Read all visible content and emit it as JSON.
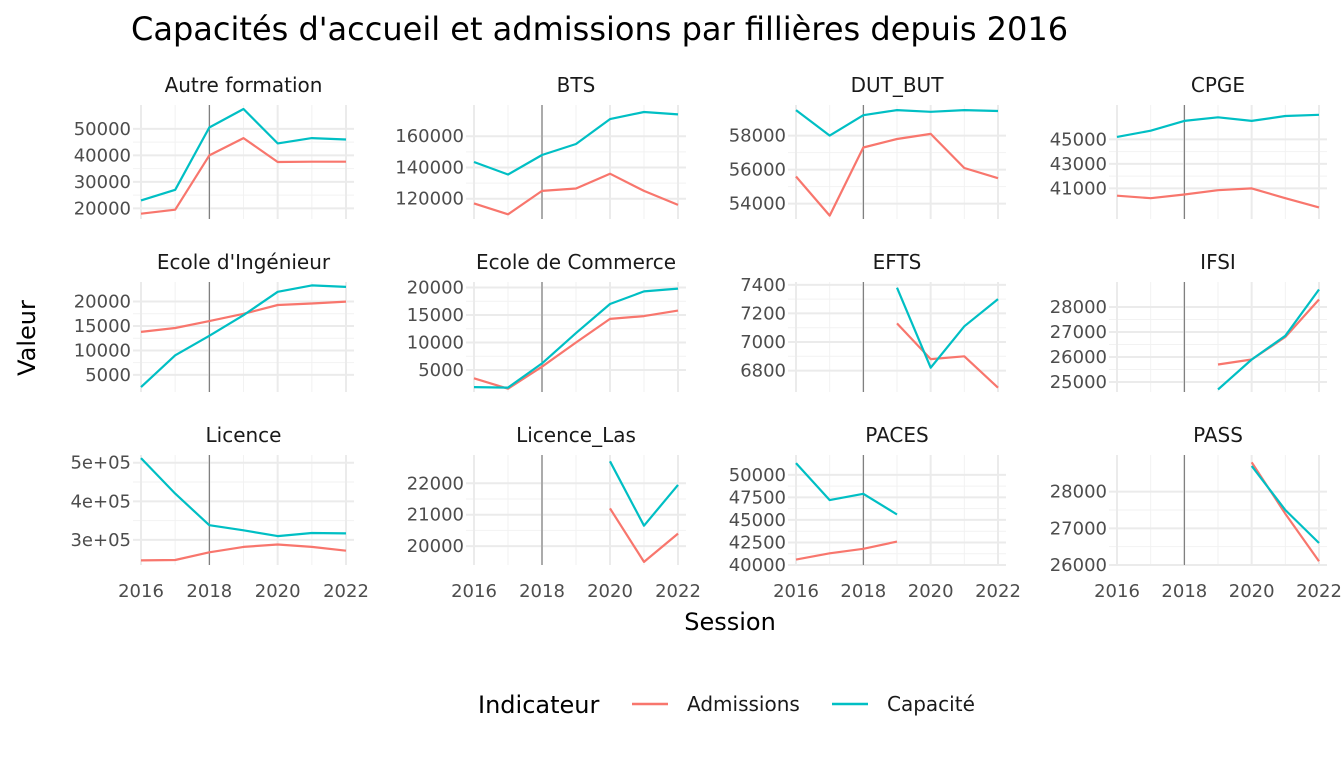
{
  "title": "Capacités d'accueil et admissions par fillières depuis 2016",
  "xlabel": "Session",
  "ylabel": "Valeur",
  "legend": {
    "title": "Indicateur",
    "items": [
      {
        "label": "Admissions",
        "color": "#F8766D"
      },
      {
        "label": "Capacité",
        "color": "#00BFC4"
      }
    ]
  },
  "chart_data": {
    "type": "line",
    "facet": "small-multiples",
    "x_ticks": [
      "2016",
      "2018",
      "2020",
      "2022"
    ],
    "x_range": [
      2016,
      2022
    ],
    "reference_line_x": 2018,
    "grid": true,
    "legend_position": "bottom",
    "x": [
      2016,
      2017,
      2018,
      2019,
      2020,
      2021,
      2022
    ],
    "panels": [
      {
        "title": "Autre formation",
        "ylim": [
          16000,
          59000
        ],
        "yticks": [
          20000,
          30000,
          40000,
          50000
        ],
        "ytick_labels": [
          "20000",
          "30000",
          "40000",
          "50000"
        ],
        "series": [
          {
            "name": "Admissions",
            "values": [
              18000,
              19500,
              40000,
              46500,
              37500,
              37600,
              37600
            ]
          },
          {
            "name": "Capacité",
            "values": [
              23000,
              27000,
              50500,
              57500,
              44500,
              46500,
              46000
            ]
          }
        ]
      },
      {
        "title": "BTS",
        "ylim": [
          107000,
          180000
        ],
        "yticks": [
          120000,
          140000,
          160000
        ],
        "ytick_labels": [
          "120000",
          "140000",
          "160000"
        ],
        "series": [
          {
            "name": "Admissions",
            "values": [
              117000,
              110000,
              125000,
              126500,
              136000,
              125000,
              116000
            ]
          },
          {
            "name": "Capacité",
            "values": [
              143500,
              135500,
              148000,
              155000,
              171000,
              175500,
              174000
            ]
          }
        ]
      },
      {
        "title": "DUT_BUT",
        "ylim": [
          53100,
          59800
        ],
        "yticks": [
          54000,
          56000,
          58000
        ],
        "ytick_labels": [
          "54000",
          "56000",
          "58000"
        ],
        "series": [
          {
            "name": "Admissions",
            "values": [
              55600,
              53300,
              57300,
              57800,
              58100,
              56100,
              55500
            ]
          },
          {
            "name": "Capacité",
            "values": [
              59500,
              58000,
              59200,
              59500,
              59400,
              59500,
              59450
            ]
          }
        ]
      },
      {
        "title": "CPGE",
        "ylim": [
          38500,
          47800
        ],
        "yticks": [
          41000,
          43000,
          45000
        ],
        "ytick_labels": [
          "41000",
          "43000",
          "45000"
        ],
        "series": [
          {
            "name": "Admissions",
            "values": [
              40400,
              40200,
              40500,
              40850,
              41000,
              40200,
              39450
            ]
          },
          {
            "name": "Capacité",
            "values": [
              45200,
              45700,
              46500,
              46800,
              46500,
              46900,
              47000
            ]
          }
        ]
      },
      {
        "title": "Ecole d'Ingénieur",
        "ylim": [
          1500,
          24000
        ],
        "yticks": [
          5000,
          10000,
          15000,
          20000
        ],
        "ytick_labels": [
          "5000",
          "10000",
          "15000",
          "20000"
        ],
        "series": [
          {
            "name": "Admissions",
            "values": [
              13800,
              14600,
              16000,
              17500,
              19300,
              19600,
              20000
            ]
          },
          {
            "name": "Capacité",
            "values": [
              2500,
              9000,
              13000,
              17200,
              22000,
              23300,
              23000
            ]
          }
        ]
      },
      {
        "title": "Ecole de Commerce",
        "ylim": [
          1000,
          21000
        ],
        "yticks": [
          5000,
          10000,
          15000,
          20000
        ],
        "ytick_labels": [
          "5000",
          "10000",
          "15000",
          "20000"
        ],
        "series": [
          {
            "name": "Admissions",
            "values": [
              3500,
              1600,
              5600,
              10000,
              14300,
              14800,
              15800
            ]
          },
          {
            "name": "Capacité",
            "values": [
              1900,
              1800,
              6200,
              11700,
              17000,
              19300,
              19800
            ]
          }
        ]
      },
      {
        "title": "EFTS",
        "ylim": [
          6650,
          7420
        ],
        "yticks": [
          6800,
          7000,
          7200,
          7400
        ],
        "ytick_labels": [
          "6800",
          "7000",
          "7200",
          "7400"
        ],
        "series": [
          {
            "name": "Admissions",
            "values": [
              null,
              null,
              null,
              7130,
              6880,
              6900,
              6680
            ]
          },
          {
            "name": "Capacité",
            "values": [
              null,
              null,
              null,
              7380,
              6820,
              7110,
              7300
            ]
          }
        ]
      },
      {
        "title": "IFSI",
        "ylim": [
          24600,
          29000
        ],
        "yticks": [
          25000,
          26000,
          27000,
          28000
        ],
        "ytick_labels": [
          "25000",
          "26000",
          "27000",
          "28000"
        ],
        "series": [
          {
            "name": "Admissions",
            "values": [
              null,
              null,
              null,
              25700,
              25900,
              26800,
              28300
            ]
          },
          {
            "name": "Capacité",
            "values": [
              null,
              null,
              null,
              24700,
              25900,
              26850,
              28700
            ]
          }
        ]
      },
      {
        "title": "Licence",
        "ylim": [
          235000,
          520000
        ],
        "yticks": [
          300000,
          400000,
          500000
        ],
        "ytick_labels": [
          "3e+05",
          "4e+05",
          "5e+05"
        ],
        "series": [
          {
            "name": "Admissions",
            "values": [
              247000,
              248000,
              268000,
              282000,
              288000,
              282000,
              272000
            ]
          },
          {
            "name": "Capacité",
            "values": [
              512000,
              420000,
              338000,
              325000,
              310000,
              318000,
              317000
            ]
          }
        ]
      },
      {
        "title": "Licence_Las",
        "ylim": [
          19400,
          22900
        ],
        "yticks": [
          20000,
          21000,
          22000
        ],
        "ytick_labels": [
          "20000",
          "21000",
          "22000"
        ],
        "series": [
          {
            "name": "Admissions",
            "values": [
              null,
              null,
              null,
              null,
              21200,
              19500,
              20400
            ]
          },
          {
            "name": "Capacité",
            "values": [
              null,
              null,
              null,
              null,
              22700,
              20650,
              21950
            ]
          }
        ]
      },
      {
        "title": "PACES",
        "ylim": [
          40000,
          52200
        ],
        "yticks": [
          40000,
          42500,
          45000,
          47500,
          50000
        ],
        "ytick_labels": [
          "40000",
          "42500",
          "45000",
          "47500",
          "50000"
        ],
        "series": [
          {
            "name": "Admissions",
            "values": [
              40600,
              41300,
              41800,
              42600,
              null,
              null,
              null
            ]
          },
          {
            "name": "Capacité",
            "values": [
              51300,
              47200,
              47900,
              45600,
              null,
              null,
              null
            ]
          }
        ]
      },
      {
        "title": "PASS",
        "ylim": [
          26000,
          29000
        ],
        "yticks": [
          26000,
          27000,
          28000
        ],
        "ytick_labels": [
          "26000",
          "27000",
          "28000"
        ],
        "series": [
          {
            "name": "Admissions",
            "values": [
              null,
              null,
              null,
              null,
              28800,
              27400,
              26100
            ]
          },
          {
            "name": "Capacité",
            "values": [
              null,
              null,
              null,
              null,
              28700,
              27500,
              26600
            ]
          }
        ]
      }
    ]
  }
}
